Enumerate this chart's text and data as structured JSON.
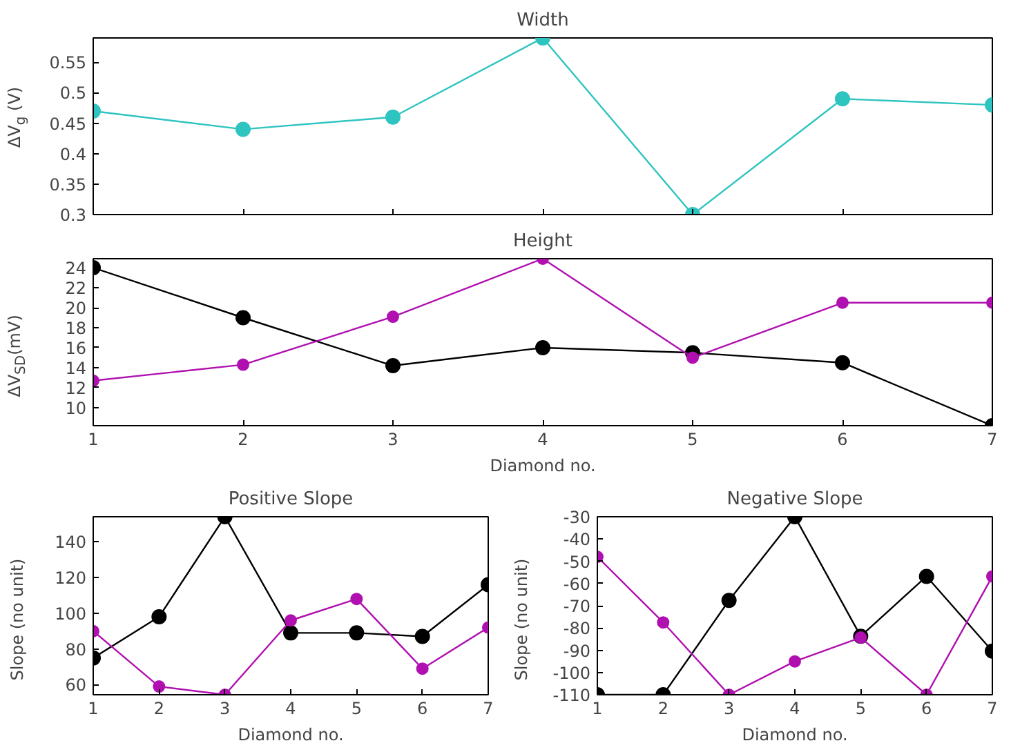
{
  "chart_data": [
    {
      "type": "line",
      "title": "Width",
      "ylabel": "ΔV$_{g}$ (V)",
      "x": [
        1,
        2,
        3,
        4,
        5,
        6,
        7
      ],
      "xlim": [
        1,
        7
      ],
      "xticks": [
        1,
        2,
        3,
        4,
        5,
        6,
        7
      ],
      "ylim": [
        0.3,
        0.59
      ],
      "yticks": [
        0.3,
        0.35,
        0.4,
        0.45,
        0.5,
        0.55
      ],
      "tick_labels": "y",
      "grid": false,
      "marker": "circle",
      "series": [
        {
          "color": "#2ec4c0",
          "values": [
            0.47,
            0.44,
            0.46,
            0.59,
            0.3,
            0.49,
            0.48
          ]
        }
      ]
    },
    {
      "type": "line",
      "title": "Height",
      "xlabel": "Diamond no.",
      "ylabel": "ΔV$_{SD}$(mV)",
      "x": [
        1,
        2,
        3,
        4,
        5,
        6,
        7
      ],
      "xlim": [
        1,
        7
      ],
      "xticks": [
        1,
        2,
        3,
        4,
        5,
        6,
        7
      ],
      "ylim": [
        8.2,
        24.9
      ],
      "yticks": [
        10,
        12,
        14,
        16,
        18,
        20,
        22,
        24
      ],
      "grid": false,
      "marker": "circle",
      "series": [
        {
          "color": "#000000",
          "values": [
            24,
            19,
            14.2,
            16,
            15.5,
            14.5,
            8.2
          ]
        },
        {
          "color": "#b010b0",
          "values": [
            12.7,
            14.3,
            19.1,
            24.9,
            15.0,
            20.5,
            20.5
          ]
        }
      ]
    },
    {
      "type": "line",
      "title": "Positive Slope",
      "xlabel": "Diamond no.",
      "ylabel": "Slope (no unit)",
      "x": [
        1,
        2,
        3,
        4,
        5,
        6,
        7
      ],
      "xlim": [
        1,
        7
      ],
      "xticks": [
        1,
        2,
        3,
        4,
        5,
        6,
        7
      ],
      "ylim": [
        54.4,
        154
      ],
      "yticks": [
        60,
        80,
        100,
        120,
        140
      ],
      "grid": false,
      "marker": "circle",
      "series": [
        {
          "color": "#000000",
          "values": [
            75,
            98,
            154,
            89,
            89,
            87,
            116
          ]
        },
        {
          "color": "#b010b0",
          "values": [
            90,
            59,
            54.4,
            96,
            108,
            69,
            92
          ]
        }
      ]
    },
    {
      "type": "line",
      "title": "Negative Slope",
      "xlabel": "Diamond no.",
      "ylabel": "Slope (no unit)",
      "x": [
        1,
        2,
        3,
        4,
        5,
        6,
        7
      ],
      "xlim": [
        1,
        7
      ],
      "xticks": [
        1,
        2,
        3,
        4,
        5,
        6,
        7
      ],
      "ylim": [
        -110,
        -30
      ],
      "yticks": [
        -110,
        -100,
        -90,
        -80,
        -70,
        -60,
        -50,
        -40,
        -30
      ],
      "grid": false,
      "marker": "circle",
      "series": [
        {
          "color": "#000000",
          "values": [
            -110,
            -110,
            -67.6,
            -30,
            -83.7,
            -56.8,
            -90.4
          ]
        },
        {
          "color": "#b010b0",
          "values": [
            -48,
            -77.5,
            -110,
            -95,
            -84.3,
            -110,
            -56.8
          ]
        }
      ]
    }
  ]
}
